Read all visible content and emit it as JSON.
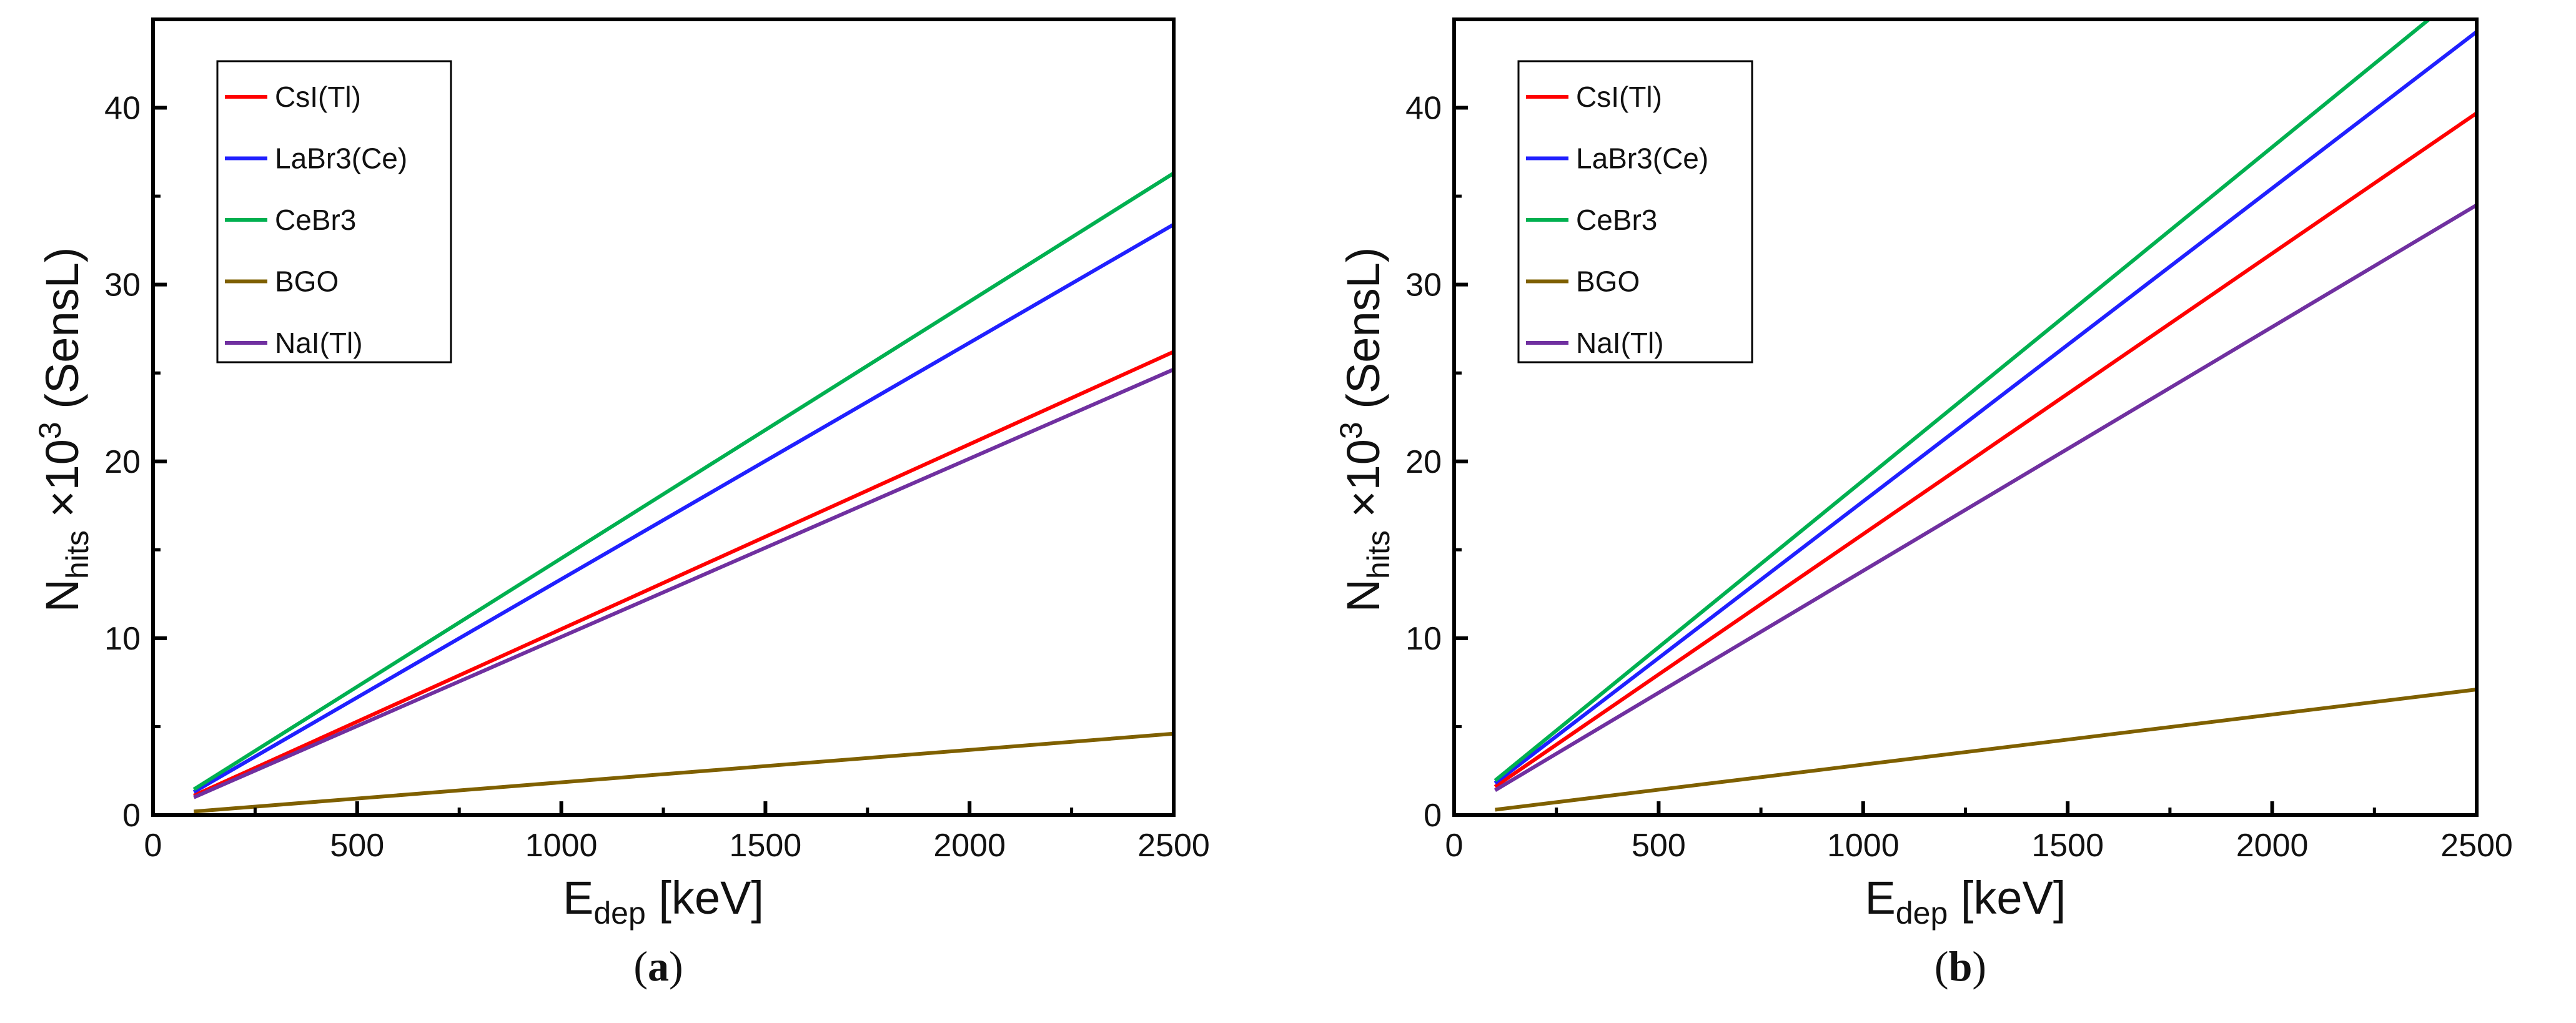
{
  "chart_data": [
    {
      "type": "line",
      "caption_letter": "a",
      "xlabel_main": "E",
      "xlabel_sub": "dep",
      "xlabel_rest": " [keV]",
      "ylabel_main": "N",
      "ylabel_sub": "hits",
      "ylabel_mid": " ×10",
      "ylabel_sup": "3",
      "ylabel_rest": " (SensL)",
      "xlim": [
        0,
        2500
      ],
      "ylim": [
        0,
        45
      ],
      "xticks": [
        0,
        500,
        1000,
        1500,
        2000,
        2500
      ],
      "yticks": [
        0,
        10,
        20,
        30,
        40
      ],
      "grid": false,
      "legend_position": "top-left",
      "x": [
        100,
        2500
      ],
      "series": [
        {
          "name": "CsI(Tl)",
          "color": "#ff0000",
          "values": [
            1.1,
            26.2
          ]
        },
        {
          "name": "LaBr3(Ce)",
          "color": "#2020ff",
          "values": [
            1.3,
            33.4
          ]
        },
        {
          "name": "CeBr3",
          "color": "#00b050",
          "values": [
            1.45,
            36.3
          ]
        },
        {
          "name": "BGO",
          "color": "#7f6000",
          "values": [
            0.2,
            4.6
          ]
        },
        {
          "name": "NaI(Tl)",
          "color": "#7030a0",
          "values": [
            1.0,
            25.2
          ]
        }
      ]
    },
    {
      "type": "line",
      "caption_letter": "b",
      "xlabel_main": "E",
      "xlabel_sub": "dep",
      "xlabel_rest": " [keV]",
      "ylabel_main": "N",
      "ylabel_sub": "hits",
      "ylabel_mid": " ×10",
      "ylabel_sup": "3",
      "ylabel_rest": " (SensL)",
      "xlim": [
        0,
        2500
      ],
      "ylim": [
        0,
        45
      ],
      "xticks": [
        0,
        500,
        1000,
        1500,
        2000,
        2500
      ],
      "yticks": [
        0,
        10,
        20,
        30,
        40
      ],
      "grid": false,
      "legend_position": "top-left",
      "x": [
        100,
        2500
      ],
      "series": [
        {
          "name": "CsI(Tl)",
          "color": "#ff0000",
          "values": [
            1.6,
            39.7
          ]
        },
        {
          "name": "LaBr3(Ce)",
          "color": "#2020ff",
          "values": [
            1.8,
            44.3
          ]
        },
        {
          "name": "CeBr3",
          "color": "#00b050",
          "values": [
            1.95,
            47.2
          ]
        },
        {
          "name": "BGO",
          "color": "#7f6000",
          "values": [
            0.3,
            7.1
          ]
        },
        {
          "name": "NaI(Tl)",
          "color": "#7030a0",
          "values": [
            1.4,
            34.5
          ]
        }
      ]
    }
  ]
}
